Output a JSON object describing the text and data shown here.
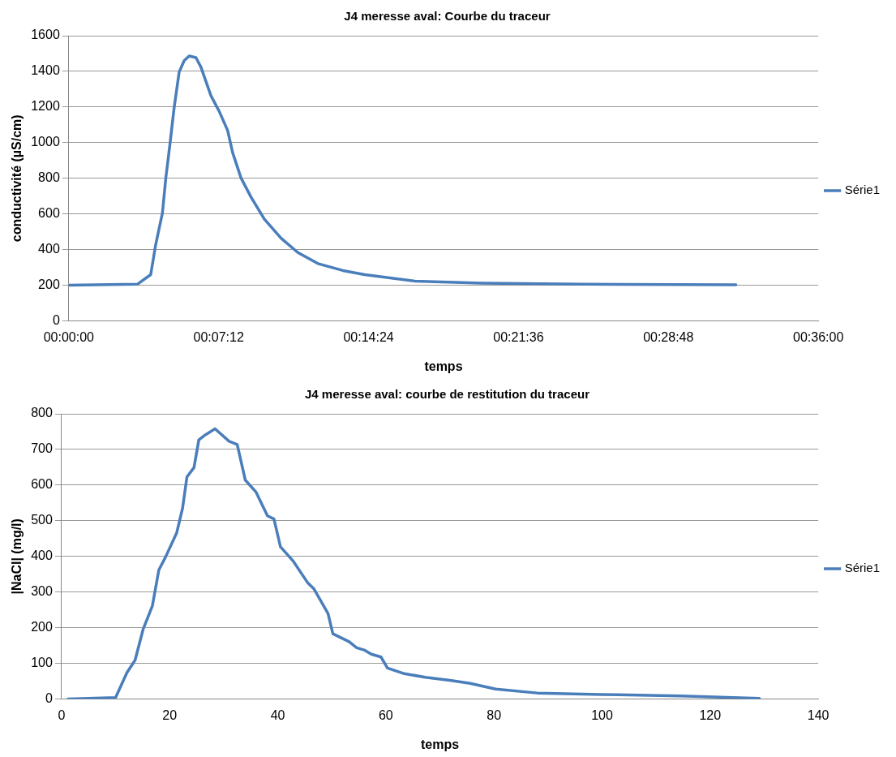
{
  "chart_data": [
    {
      "type": "line",
      "title": "J4 meresse aval: Courbe du traceur",
      "xlabel": "temps",
      "ylabel": "conductivité (µS/cm)",
      "xlim": [
        0,
        0.6
      ],
      "xticks": [
        {
          "value": 0,
          "label": "00:00:00"
        },
        {
          "value": 0.12,
          "label": "00:07:12"
        },
        {
          "value": 0.24,
          "label": "00:14:24"
        },
        {
          "value": 0.36,
          "label": "00:21:36"
        },
        {
          "value": 0.48,
          "label": "00:28:48"
        },
        {
          "value": 0.6,
          "label": "00:36:00"
        }
      ],
      "ylim": [
        0,
        1600
      ],
      "yticks": [
        0,
        200,
        400,
        600,
        800,
        1000,
        1200,
        1400,
        1600
      ],
      "grid": "y",
      "legend": "right",
      "marker": "none",
      "line_style": "solid",
      "series": [
        {
          "name": "Série1",
          "color": "#4a7ebb",
          "x": [
            0,
            0.0549,
            0.0656,
            0.0696,
            0.075,
            0.0777,
            0.0811,
            0.0843,
            0.0884,
            0.0924,
            0.0964,
            0.1018,
            0.1058,
            0.1138,
            0.1205,
            0.1272,
            0.1312,
            0.1379,
            0.1459,
            0.1566,
            0.17,
            0.1834,
            0.1994,
            0.2195,
            0.2369,
            0.2771,
            0.3307,
            0.411,
            0.5341
          ],
          "values": [
            201,
            206,
            260,
            428,
            606,
            802,
            997,
            1193,
            1397,
            1460,
            1486,
            1477,
            1424,
            1264,
            1175,
            1068,
            944,
            802,
            695,
            571,
            464,
            384,
            322,
            283,
            260,
            224,
            212,
            206,
            203
          ]
        }
      ]
    },
    {
      "type": "line",
      "title": "J4 meresse aval: courbe de restitution du traceur",
      "xlabel": "temps",
      "ylabel": "|NaCl| (mg/l)",
      "xlim": [
        0,
        140
      ],
      "xticks": [
        0,
        20,
        40,
        60,
        80,
        100,
        120,
        140
      ],
      "ylim": [
        0,
        800
      ],
      "yticks": [
        0,
        100,
        200,
        300,
        400,
        500,
        600,
        700,
        800
      ],
      "grid": "y",
      "legend": "right",
      "marker": "none",
      "line_style": "solid",
      "series": [
        {
          "name": "Série1",
          "color": "#4a7ebb",
          "x": [
            1.2,
            10.0,
            12.1,
            13.6,
            15.1,
            16.8,
            18.0,
            19.2,
            21.3,
            22.4,
            23.2,
            24.5,
            25.4,
            26.6,
            28.4,
            31.0,
            32.5,
            34.0,
            36.0,
            38.1,
            39.3,
            40.5,
            42.8,
            45.5,
            46.7,
            49.3,
            50.2,
            53.2,
            54.6,
            56.1,
            57.3,
            59.1,
            60.3,
            63.2,
            67.3,
            72.1,
            75.6,
            80.3,
            88.0,
            99.8,
            114.6,
            129.1
          ],
          "values": [
            0,
            4,
            74,
            109,
            196,
            261,
            362,
            397,
            466,
            536,
            623,
            649,
            727,
            741,
            758,
            723,
            714,
            614,
            580,
            514,
            505,
            427,
            388,
            327,
            309,
            240,
            183,
            161,
            144,
            137,
            126,
            118,
            87,
            72,
            61,
            52,
            44,
            28,
            17,
            13,
            9,
            2
          ]
        }
      ]
    }
  ]
}
